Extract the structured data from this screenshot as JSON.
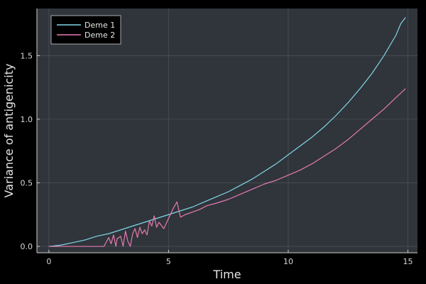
{
  "chart_data": {
    "type": "line",
    "title": "",
    "xlabel": "Time",
    "ylabel": "Variance of antigenicity",
    "xlim": [
      -0.5,
      15.4
    ],
    "ylim": [
      -0.05,
      1.87
    ],
    "xticks": [
      0,
      5,
      10,
      15
    ],
    "yticks": [
      0.0,
      0.5,
      1.0,
      1.5
    ],
    "xtick_labels": [
      "0",
      "5",
      "10",
      "15"
    ],
    "ytick_labels": [
      "0.0",
      "0.5",
      "1.0",
      "1.5"
    ],
    "grid": true,
    "legend_position": "top-left",
    "background": "#000000",
    "plot_background": "#30343b",
    "series": [
      {
        "name": "Deme 1",
        "color": "#7fd7e6",
        "x": [
          0,
          0.5,
          1.0,
          1.5,
          2.0,
          2.5,
          3.0,
          3.5,
          4.0,
          4.5,
          5.0,
          5.5,
          6.0,
          6.5,
          7.0,
          7.5,
          8.0,
          8.5,
          9.0,
          9.5,
          10.0,
          10.5,
          11.0,
          11.5,
          12.0,
          12.5,
          13.0,
          13.5,
          14.0,
          14.5,
          14.7,
          14.9
        ],
        "y": [
          0.0,
          0.01,
          0.03,
          0.05,
          0.08,
          0.1,
          0.13,
          0.16,
          0.19,
          0.22,
          0.25,
          0.28,
          0.31,
          0.35,
          0.39,
          0.43,
          0.48,
          0.53,
          0.59,
          0.65,
          0.72,
          0.79,
          0.86,
          0.94,
          1.03,
          1.13,
          1.24,
          1.36,
          1.5,
          1.66,
          1.75,
          1.8
        ]
      },
      {
        "name": "Deme 2",
        "color": "#e57bb0",
        "x": [
          0,
          0.5,
          1.0,
          1.5,
          2.0,
          2.3,
          2.5,
          2.6,
          2.7,
          2.8,
          2.85,
          3.0,
          3.1,
          3.2,
          3.3,
          3.4,
          3.5,
          3.6,
          3.7,
          3.8,
          3.9,
          4.0,
          4.1,
          4.2,
          4.3,
          4.4,
          4.5,
          4.6,
          4.8,
          5.0,
          5.2,
          5.35,
          5.5,
          5.7,
          6.0,
          6.3,
          6.6,
          7.0,
          7.5,
          8.0,
          8.5,
          9.0,
          9.5,
          10.0,
          10.5,
          11.0,
          11.5,
          12.0,
          12.5,
          13.0,
          13.5,
          14.0,
          14.5,
          14.9
        ],
        "y": [
          0.0,
          0.0,
          0.0,
          0.0,
          0.0,
          0.0,
          0.07,
          0.02,
          0.09,
          0.0,
          0.06,
          0.08,
          0.0,
          0.12,
          0.04,
          0.0,
          0.1,
          0.14,
          0.07,
          0.15,
          0.1,
          0.13,
          0.09,
          0.2,
          0.16,
          0.24,
          0.15,
          0.19,
          0.14,
          0.22,
          0.3,
          0.35,
          0.23,
          0.25,
          0.27,
          0.29,
          0.32,
          0.34,
          0.37,
          0.41,
          0.45,
          0.49,
          0.52,
          0.56,
          0.6,
          0.65,
          0.71,
          0.77,
          0.84,
          0.92,
          1.0,
          1.08,
          1.17,
          1.24
        ]
      }
    ]
  }
}
